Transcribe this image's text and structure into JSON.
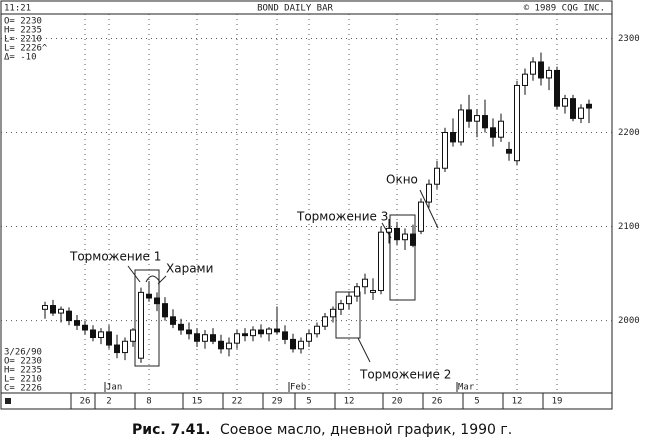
{
  "chart_data": {
    "type": "candlestick",
    "header": {
      "time": "11:21",
      "title": "BOND DAILY BAR",
      "copyright": "© 1989 CQG INC."
    },
    "info_top": [
      "O= 2230",
      "H= 2235",
      "L= 2210",
      "L= 2226^",
      "Δ= -10"
    ],
    "info_bottom": [
      "3/26/90",
      "O= 2230",
      "H= 2235",
      "L= 2210",
      "C= 2226"
    ],
    "categories": [
      null,
      null,
      null,
      null,
      null,
      "26",
      null,
      null,
      "2",
      null,
      null,
      null,
      null,
      "8",
      null,
      null,
      null,
      null,
      null,
      "15",
      null,
      null,
      null,
      null,
      "22",
      null,
      null,
      null,
      null,
      "29",
      null,
      null,
      null,
      "5",
      null,
      null,
      null,
      null,
      "12",
      null,
      null,
      null,
      null,
      null,
      "20",
      null,
      null,
      null,
      null,
      "26",
      null,
      null,
      null,
      null,
      "5",
      null,
      null,
      null,
      null,
      "12",
      null,
      null,
      null,
      null,
      "19",
      null,
      null,
      null,
      null
    ],
    "months": [
      null,
      null,
      null,
      null,
      null,
      null,
      null,
      null,
      "Jan",
      null,
      null,
      null,
      null,
      null,
      null,
      null,
      null,
      null,
      null,
      null,
      null,
      null,
      null,
      null,
      null,
      null,
      null,
      null,
      null,
      null,
      null,
      "Feb",
      null,
      null,
      null,
      null,
      null,
      null,
      null,
      null,
      null,
      null,
      null,
      null,
      null,
      null,
      null,
      null,
      null,
      null,
      null,
      null,
      "Mar",
      null,
      null,
      null,
      null,
      null,
      null,
      null,
      null,
      null,
      null,
      null,
      null,
      null,
      null,
      null,
      null
    ],
    "open": [
      2012,
      2016,
      2008,
      2010,
      2000,
      1995,
      1990,
      1982,
      1988,
      1974,
      1966,
      1978,
      1960,
      2028,
      2024,
      2018,
      2004,
      1996,
      1990,
      1986,
      1978,
      1985,
      1978,
      1970,
      1976,
      1986,
      1984,
      1990,
      1986,
      1991,
      1988,
      1980,
      1970,
      1978,
      1986,
      1994,
      2004,
      2012,
      2018,
      2026,
      2036,
      2030,
      2032,
      2094,
      2098,
      2086,
      2092,
      2095,
      2126,
      2145,
      2162,
      2200,
      2190,
      2224,
      2212,
      2218,
      2205,
      2195,
      2182,
      2170,
      2250,
      2262,
      2275,
      2258,
      2266,
      2228,
      2236,
      2215,
      2230
    ],
    "high": [
      2020,
      2022,
      2015,
      2014,
      2006,
      2000,
      1995,
      1992,
      1995,
      1985,
      1982,
      1992,
      2035,
      2042,
      2030,
      2025,
      2012,
      2002,
      1998,
      1992,
      1990,
      1992,
      1985,
      1982,
      1990,
      1992,
      1994,
      1996,
      1993,
      2015,
      1995,
      1986,
      1982,
      1990,
      1998,
      2008,
      2015,
      2022,
      2030,
      2040,
      2050,
      2045,
      2100,
      2108,
      2105,
      2098,
      2102,
      2130,
      2150,
      2170,
      2205,
      2215,
      2230,
      2240,
      2225,
      2235,
      2215,
      2220,
      2190,
      2255,
      2268,
      2280,
      2285,
      2270,
      2270,
      2240,
      2240,
      2230,
      2235
    ],
    "low": [
      2002,
      2005,
      1998,
      1995,
      1990,
      1985,
      1978,
      1975,
      1970,
      1960,
      1958,
      1972,
      1955,
      2020,
      2010,
      2000,
      1992,
      1985,
      1980,
      1972,
      1970,
      1975,
      1965,
      1962,
      1970,
      1978,
      1978,
      1982,
      1978,
      1985,
      1975,
      1966,
      1965,
      1972,
      1982,
      1990,
      1998,
      2006,
      2012,
      2020,
      2028,
      2022,
      2028,
      2082,
      2080,
      2075,
      2078,
      2092,
      2120,
      2140,
      2158,
      2185,
      2186,
      2205,
      2195,
      2200,
      2185,
      2190,
      2170,
      2165,
      2240,
      2255,
      2250,
      2245,
      2225,
      2220,
      2212,
      2210,
      2210
    ],
    "close": [
      2016,
      2008,
      2012,
      2000,
      1995,
      1990,
      1982,
      1988,
      1974,
      1966,
      1978,
      1990,
      2030,
      2024,
      2018,
      2004,
      1996,
      1990,
      1986,
      1978,
      1985,
      1978,
      1970,
      1976,
      1986,
      1984,
      1990,
      1986,
      1991,
      1988,
      1980,
      1970,
      1978,
      1986,
      1994,
      2004,
      2012,
      2018,
      2026,
      2036,
      2044,
      2032,
      2094,
      2098,
      2086,
      2092,
      2080,
      2126,
      2145,
      2162,
      2200,
      2190,
      2224,
      2212,
      2218,
      2205,
      2195,
      2212,
      2178,
      2250,
      2262,
      2275,
      2258,
      2266,
      2228,
      2236,
      2215,
      2226,
      2226
    ],
    "ylim": [
      1923,
      2326
    ],
    "yticks": [
      2000,
      2100,
      2200,
      2300
    ],
    "grid": true,
    "annotations": [
      "Торможение 1",
      "Харами",
      "Окно",
      "Торможение 3",
      "Торможение 2"
    ],
    "caption": {
      "label": "Рис. 7.41.",
      "text": "Соевое масло, дневной график, 1990 г."
    }
  }
}
